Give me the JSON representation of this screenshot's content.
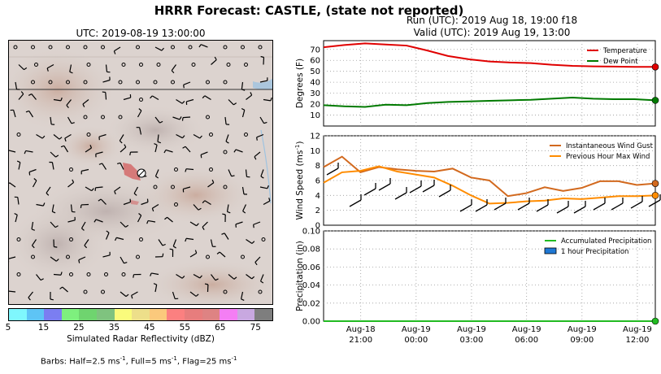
{
  "suptitle": "HRRR Forecast: CASTLE, (state not reported)",
  "run_title": "Run (UTC): 2019 Aug 18, 19:00 f18",
  "valid_title": "Valid (UTC): 2019 Aug 19, 13:00",
  "map": {
    "title": "UTC: 2019-08-19 13:00:00",
    "colorbar_label": "Simulated Radar Reflectivity (dBZ)",
    "colorbar_ticks": [
      "5",
      "15",
      "25",
      "35",
      "45",
      "55",
      "65",
      "75"
    ],
    "colorbar_colors": [
      "#7ff7fd",
      "#5ec4f5",
      "#7b7ef1",
      "#7ef07e",
      "#6fd46f",
      "#7fc37f",
      "#fafb7c",
      "#eddf8a",
      "#fbc97c",
      "#fb8080",
      "#e77d7d",
      "#de8383",
      "#f47ef4",
      "#c8a8e0",
      "#7e7e7e"
    ],
    "barbs_note_prefix": "Barbs: Half=2.5 ms",
    "barbs_note_full": ", Full=5 ms",
    "barbs_note_flag": ", Flag=25 ms",
    "barbs_exp": "-1"
  },
  "chart_data": [
    {
      "type": "line",
      "x_labels": [
        [
          "Aug-18",
          "21:00"
        ],
        [
          "Aug-19",
          "00:00"
        ],
        [
          "Aug-19",
          "03:00"
        ],
        [
          "Aug-19",
          "06:00"
        ],
        [
          "Aug-19",
          "09:00"
        ],
        [
          "Aug-19",
          "12:00"
        ]
      ],
      "ylabel": "Degrees (F)",
      "yticks": [
        "10",
        "20",
        "30",
        "40",
        "50",
        "60",
        "70"
      ],
      "ylim": [
        0,
        78
      ],
      "legend_placement": "top-right",
      "series": [
        {
          "name": "Temperature",
          "color": "#e00000",
          "values": [
            72,
            74,
            75.5,
            74.5,
            73.5,
            69,
            64,
            61,
            59,
            58,
            57.5,
            56,
            55,
            54.5,
            54.3,
            54,
            54
          ]
        },
        {
          "name": "Dew Point",
          "color": "#007a00",
          "values": [
            19,
            18,
            17.5,
            19.5,
            19,
            21,
            22,
            22.5,
            23,
            23.5,
            24,
            25,
            26,
            25,
            24.5,
            24.5,
            23.5
          ]
        }
      ]
    },
    {
      "type": "line",
      "ylabel": "Wind Speed (ms",
      "ylabel_exp": "-1",
      "yticks": [
        "0",
        "2",
        "4",
        "6",
        "8",
        "10",
        "12"
      ],
      "ylim": [
        0,
        12
      ],
      "legend_placement": "top-right",
      "series": [
        {
          "name": "Instantaneous Wind Gust",
          "color": "#d2691e",
          "values": [
            7.8,
            9.2,
            7.1,
            7.8,
            7.5,
            7.3,
            7.2,
            7.6,
            6.4,
            6,
            3.9,
            4.3,
            5.1,
            4.6,
            5,
            5.9,
            5.9,
            5.4,
            5.6
          ]
        },
        {
          "name": "Previous Hour Max Wind",
          "color": "#ff8c00",
          "values": [
            5.7,
            7.1,
            7.3,
            7.9,
            7.2,
            6.8,
            6.4,
            5.3,
            4,
            2.9,
            3,
            3.2,
            3.3,
            3.6,
            3.5,
            3.7,
            3.9,
            3.9,
            4
          ]
        }
      ]
    },
    {
      "type": "line",
      "ylabel": "Precipitation (in)",
      "yticks": [
        "0.00",
        "0.02",
        "0.04",
        "0.06",
        "0.08",
        "0.10"
      ],
      "ylim": [
        0,
        0.1
      ],
      "legend_placement": "top-right",
      "series": [
        {
          "name": "Accumulated Precipitation",
          "color": "#22bb22",
          "values": [
            0,
            0,
            0,
            0,
            0,
            0,
            0,
            0,
            0,
            0,
            0,
            0,
            0,
            0,
            0,
            0,
            0,
            0,
            0
          ]
        },
        {
          "name": "1 hour Precipitation",
          "color": "#1f78d4",
          "values": []
        }
      ]
    }
  ]
}
